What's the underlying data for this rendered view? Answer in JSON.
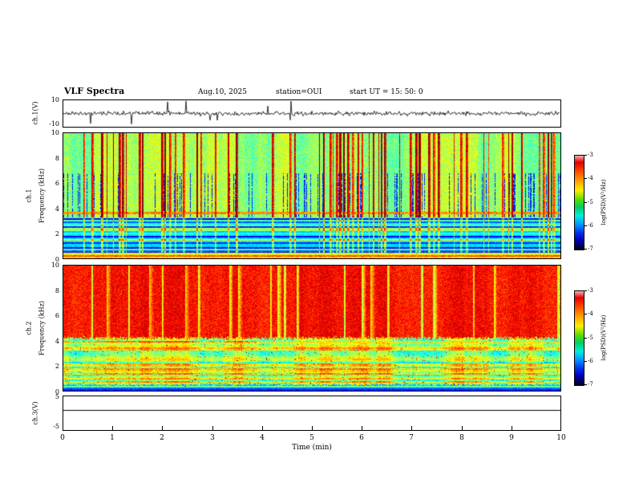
{
  "title": "VLF Spectra",
  "header": {
    "date": "Aug.10, 2025",
    "station": "station=OUI",
    "start_ut": "start UT =  15: 50: 0"
  },
  "axes": {
    "time_label": "Time (min)",
    "time_ticks": [
      "0",
      "1",
      "2",
      "3",
      "4",
      "5",
      "6",
      "7",
      "8",
      "9",
      "10"
    ],
    "freq_ticks": [
      "10",
      "8",
      "6",
      "4",
      "2",
      "0"
    ],
    "ch1v": {
      "label": "ch.1(V)",
      "ymax": "10",
      "ymin": "-10"
    },
    "ch1": {
      "name": "ch.1",
      "freq_label": "Frequency (kHz)"
    },
    "ch2": {
      "name": "ch.2",
      "freq_label": "Frequency (kHz)"
    },
    "ch3v": {
      "label": "ch.3(V)",
      "ymax": "5",
      "ymin": "-5"
    }
  },
  "colorbar": {
    "label": "log(PSD)(V²/Hz)",
    "ticks": [
      "-3",
      "-4",
      "-5",
      "-6",
      "-7"
    ],
    "stops": [
      {
        "c": "#ffb0b0",
        "p": 0
      },
      {
        "c": "#e60000",
        "p": 7
      },
      {
        "c": "#ff5500",
        "p": 18
      },
      {
        "c": "#ffaa00",
        "p": 28
      },
      {
        "c": "#ffee00",
        "p": 37
      },
      {
        "c": "#55dd00",
        "p": 47
      },
      {
        "c": "#00cc66",
        "p": 55
      },
      {
        "c": "#00eedd",
        "p": 64
      },
      {
        "c": "#0099ff",
        "p": 73
      },
      {
        "c": "#0033ee",
        "p": 82
      },
      {
        "c": "#0000bb",
        "p": 90
      },
      {
        "c": "#000055",
        "p": 96
      },
      {
        "c": "#000022",
        "p": 100
      }
    ]
  },
  "chart_data": [
    {
      "type": "line",
      "panel": "ch.1(V) waveform",
      "xlabel": "Time (min)",
      "xlim": [
        0,
        10
      ],
      "ylabel": "ch.1(V)",
      "ylim": [
        -10,
        10
      ],
      "description": "Broadband noise time series centred on 0 V (about ±2 V) with intermittent impulsive spikes reaching roughly -10 V and +8 V scattered across the whole 10-minute record"
    },
    {
      "type": "heatmap",
      "panel": "ch.1 spectrogram",
      "xlabel": "Time (min)",
      "xlim": [
        0,
        10
      ],
      "ylabel": "Frequency (kHz)",
      "ylim": [
        0,
        10
      ],
      "colorbar_label": "log(PSD)(V²/Hz)",
      "zlim": [
        -7,
        -3
      ],
      "description": "Green (~-5) background above ~3.3 kHz crossed by dense red/yellow vertical impulsive streaks (~-3.5) at all times; dark navy patches (~-6.5) between streaks from ~3.5-7 kHz; a reddish horizontal band near 3.6-3.8 kHz; below ~3.3 kHz a horizontally banded structure of cyan/blue/navy stripes with an orange-yellow band near 0-0.5 kHz"
    },
    {
      "type": "heatmap",
      "panel": "ch.2 spectrogram",
      "xlabel": "Time (min)",
      "xlim": [
        0,
        10
      ],
      "ylabel": "Frequency (kHz)",
      "ylim": [
        0,
        10
      ],
      "colorbar_label": "log(PSD)(V²/Hz)",
      "zlim": [
        -7,
        -3
      ],
      "description": "Saturated red/orange field (~-3) above ~4.2 kHz with occasional narrow green vertical gaps; below ~4.2 kHz mottled green/cyan (~-5 to -6) with horizontal striping, scattered red speckles and lighter yellow streak lines near 2-3 kHz; darker blue rows near 0 kHz"
    },
    {
      "type": "line",
      "panel": "ch.3(V)",
      "xlabel": "Time (min)",
      "xlim": [
        0,
        10
      ],
      "ylabel": "ch.3(V)",
      "ylim": [
        -5,
        5
      ],
      "description": "Constant flat line at about +1 V for the entire 10 minutes"
    }
  ]
}
